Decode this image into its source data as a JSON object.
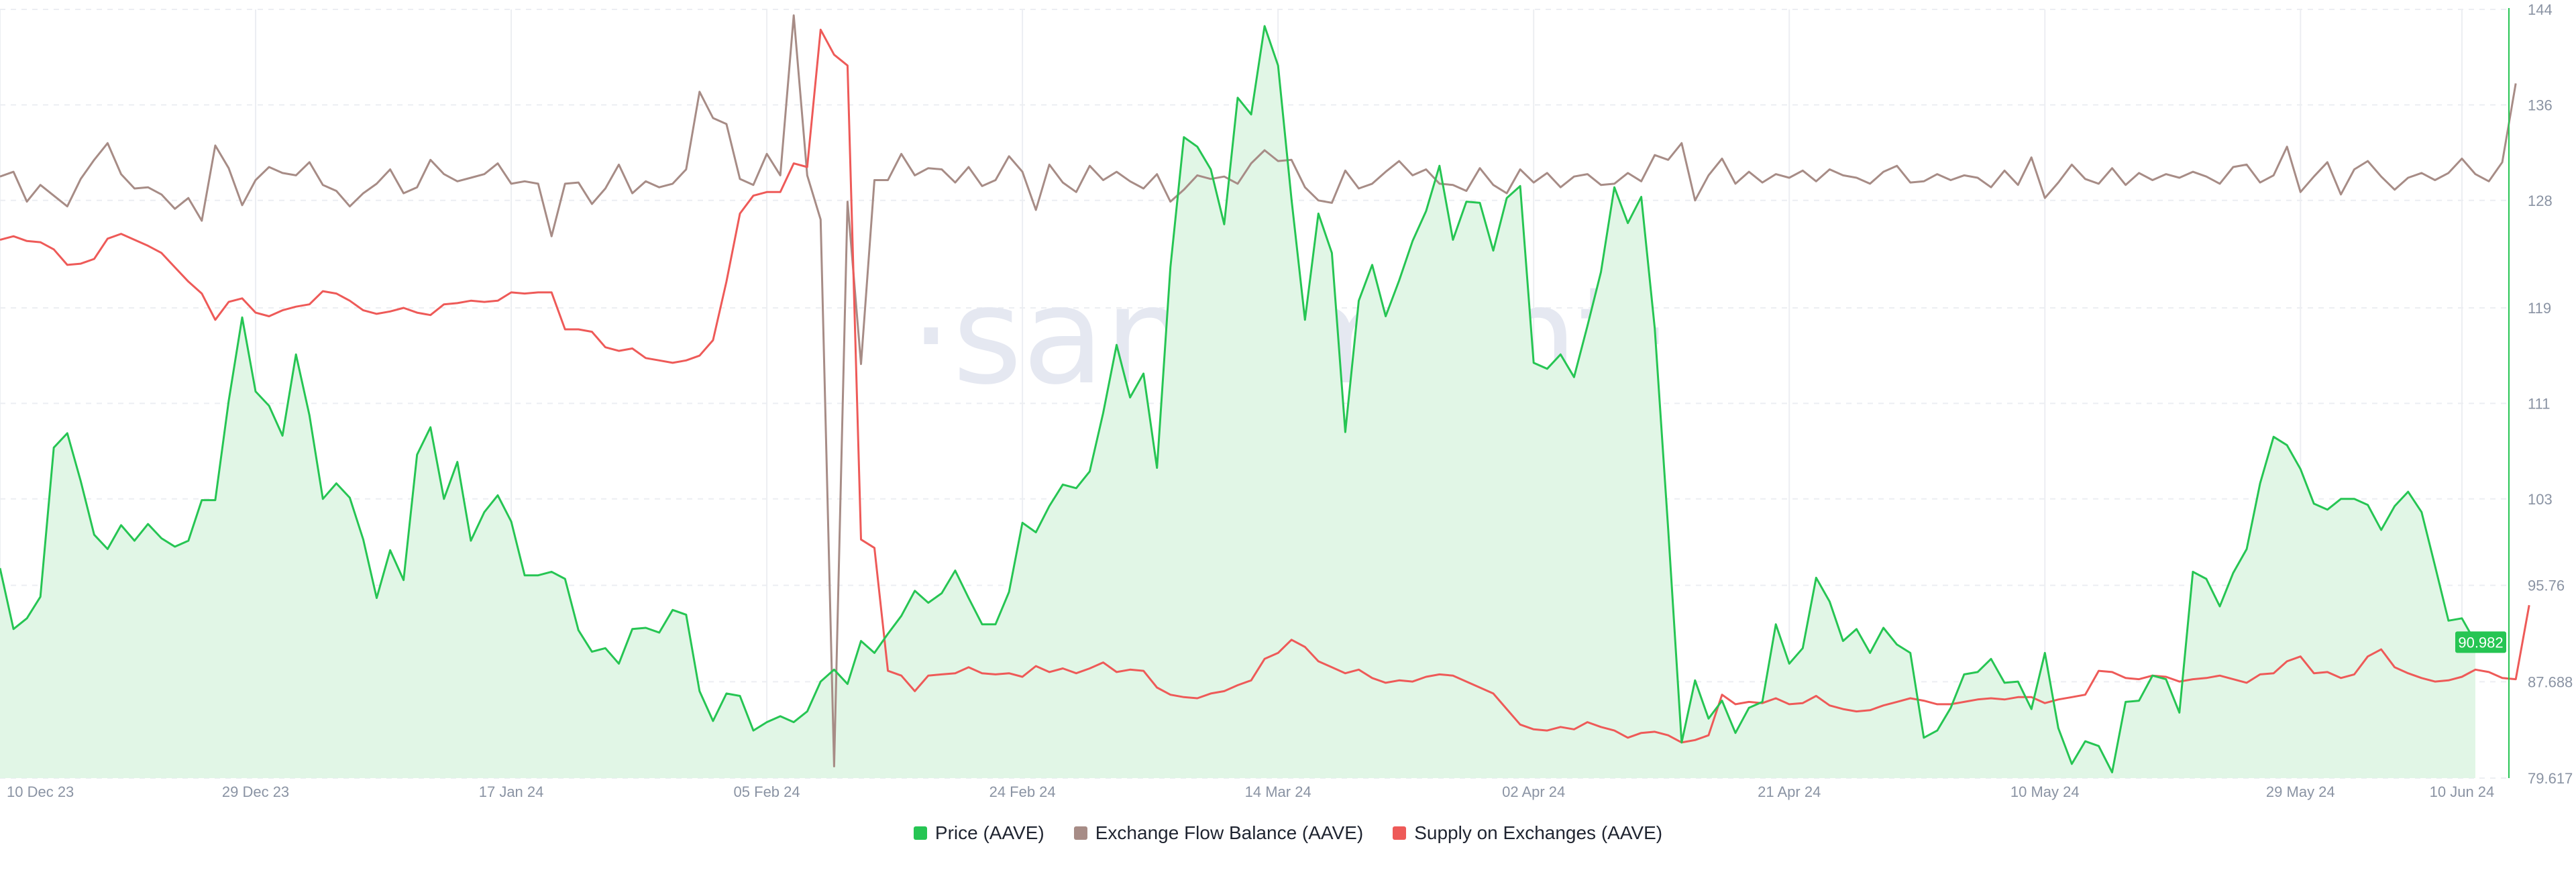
{
  "chart_data": {
    "type": "line",
    "watermark": "·santiment·",
    "x_tick_labels": [
      "10 Dec 23",
      "29 Dec 23",
      "17 Jan 24",
      "05 Feb 24",
      "24 Feb 24",
      "14 Mar 24",
      "02 Apr 24",
      "21 Apr 24",
      "10 May 24",
      "29 May 24",
      "10 Jun 24"
    ],
    "x_tick_index": [
      0,
      19,
      38,
      57,
      76,
      95,
      114,
      133,
      152,
      171,
      183
    ],
    "y_right_ticks": [
      "144",
      "136",
      "128",
      "119",
      "111",
      "103",
      "95.76",
      "87.688",
      "79.617"
    ],
    "y_right_values": [
      144,
      136,
      128,
      119,
      111,
      103,
      95.76,
      87.688,
      79.617
    ],
    "ylim_price": [
      79.617,
      144
    ],
    "current_price_label": "90.982",
    "series": [
      {
        "name": "Price (AAVE)",
        "color": "#26c553",
        "fill": "#e1f6e6",
        "values": [
          97.2,
          92.1,
          93.0,
          94.8,
          107.3,
          108.5,
          104.5,
          100.0,
          98.8,
          100.8,
          99.5,
          100.9,
          99.7,
          99.0,
          99.5,
          102.9,
          102.9,
          111.2,
          118.2,
          112.0,
          110.8,
          108.3,
          115.1,
          110.0,
          103.0,
          104.3,
          103.1,
          99.6,
          94.7,
          98.7,
          96.2,
          106.7,
          109.0,
          103.0,
          106.1,
          99.5,
          101.9,
          103.3,
          101.1,
          96.6,
          96.6,
          96.9,
          96.3,
          92.0,
          90.2,
          90.5,
          89.2,
          92.1,
          92.2,
          91.8,
          93.7,
          93.3,
          86.9,
          84.4,
          86.7,
          86.5,
          83.6,
          84.3,
          84.8,
          84.3,
          85.2,
          87.7,
          88.7,
          87.5,
          91.1,
          90.1,
          91.7,
          93.2,
          95.3,
          94.3,
          95.1,
          97.0,
          94.7,
          92.5,
          92.5,
          95.2,
          101.0,
          100.2,
          102.4,
          104.2,
          103.9,
          105.3,
          110.2,
          115.9,
          111.5,
          113.5,
          105.6,
          122.4,
          133.3,
          132.5,
          130.6,
          126.0,
          136.6,
          135.2,
          142.6,
          139.3,
          128.1,
          118.0,
          126.9,
          123.6,
          108.6,
          119.6,
          122.6,
          118.3,
          121.3,
          124.6,
          127.1,
          130.9,
          124.7,
          127.9,
          127.8,
          123.8,
          128.2,
          129.2,
          114.4,
          113.9,
          115.1,
          113.2,
          117.5,
          122.0,
          129.1,
          126.1,
          128.3,
          117.3,
          100.5,
          82.6,
          87.8,
          84.6,
          86.1,
          83.4,
          85.5,
          86.0,
          92.5,
          89.2,
          90.5,
          96.4,
          94.4,
          91.1,
          92.1,
          90.1,
          92.2,
          90.8,
          90.1,
          83.0,
          83.6,
          85.5,
          88.3,
          88.5,
          89.6,
          87.6,
          87.7,
          85.4,
          90.1,
          83.8,
          80.8,
          82.7,
          82.3,
          80.1,
          86.0,
          86.1,
          88.2,
          87.9,
          85.1,
          96.9,
          96.3,
          94.0,
          96.8,
          98.8,
          104.3,
          108.2,
          107.5,
          105.5,
          102.6,
          102.1,
          103.0,
          103.0,
          102.5,
          100.4,
          102.4,
          103.6,
          101.9,
          97.4,
          92.8,
          93.0,
          91.0
        ]
      },
      {
        "name": "Exchange Flow Balance (AAVE)",
        "color": "#a78c86",
        "values": [
          130.0,
          130.4,
          127.9,
          129.3,
          128.4,
          127.5,
          129.8,
          131.4,
          132.8,
          130.2,
          129.0,
          129.1,
          128.5,
          127.3,
          128.2,
          126.3,
          132.6,
          130.7,
          127.6,
          129.7,
          130.8,
          130.3,
          130.1,
          131.2,
          129.3,
          128.8,
          127.5,
          128.6,
          129.4,
          130.6,
          128.6,
          129.1,
          131.4,
          130.2,
          129.6,
          129.9,
          130.2,
          131.1,
          129.4,
          129.6,
          129.4,
          125.0,
          129.4,
          129.5,
          127.7,
          129.0,
          131.0,
          128.6,
          129.6,
          129.1,
          129.4,
          130.6,
          137.1,
          134.9,
          134.4,
          129.8,
          129.3,
          131.9,
          130.1,
          143.5,
          130.1,
          126.4,
          80.6,
          127.9,
          114.3,
          129.7,
          129.7,
          131.9,
          130.1,
          130.7,
          130.6,
          129.5,
          130.8,
          129.2,
          129.7,
          131.7,
          130.4,
          127.2,
          131.0,
          129.5,
          128.7,
          130.9,
          129.7,
          130.4,
          129.6,
          129.0,
          130.2,
          127.9,
          128.9,
          130.1,
          129.8,
          130.0,
          129.4,
          131.1,
          132.2,
          131.3,
          131.4,
          129.1,
          128.0,
          127.8,
          130.5,
          129.0,
          129.4,
          130.4,
          131.3,
          130.1,
          130.6,
          129.4,
          129.3,
          128.8,
          130.7,
          129.3,
          128.6,
          130.6,
          129.5,
          130.3,
          129.1,
          130.0,
          130.2,
          129.3,
          129.4,
          130.3,
          129.6,
          131.8,
          131.4,
          132.8,
          128.0,
          130.1,
          131.5,
          129.4,
          130.4,
          129.5,
          130.2,
          129.9,
          130.5,
          129.6,
          130.6,
          130.1,
          129.9,
          129.4,
          130.4,
          130.9,
          129.5,
          129.6,
          130.2,
          129.7,
          130.1,
          129.9,
          129.1,
          130.5,
          129.3,
          131.6,
          128.2,
          129.5,
          131.0,
          129.8,
          129.4,
          130.7,
          129.3,
          130.3,
          129.7,
          130.2,
          129.9,
          130.4,
          130.0,
          129.4,
          130.8,
          131.0,
          129.5,
          130.1,
          132.5,
          128.7,
          130.0,
          131.2,
          128.5,
          130.6,
          131.3,
          130.0,
          128.9,
          129.9,
          130.3,
          129.7,
          130.3,
          131.5,
          130.2,
          129.6,
          131.2,
          137.8
        ]
      },
      {
        "name": "Supply on Exchanges (AAVE)",
        "color": "#ee5a58",
        "values": [
          124.7,
          125.0,
          124.6,
          124.5,
          123.9,
          122.6,
          122.7,
          123.1,
          124.8,
          125.2,
          124.7,
          124.2,
          123.6,
          122.4,
          121.2,
          120.2,
          118.0,
          119.5,
          119.8,
          118.6,
          118.3,
          118.8,
          119.1,
          119.3,
          120.4,
          120.2,
          119.6,
          118.8,
          118.5,
          118.7,
          119.0,
          118.6,
          118.4,
          119.3,
          119.4,
          119.6,
          119.5,
          119.6,
          120.3,
          120.2,
          120.3,
          120.3,
          117.2,
          117.2,
          117.0,
          115.7,
          115.4,
          115.6,
          114.8,
          114.6,
          114.4,
          114.6,
          115.0,
          116.3,
          121.2,
          126.9,
          128.4,
          128.7,
          128.7,
          131.1,
          130.8,
          142.3,
          140.2,
          139.3,
          99.6,
          98.9,
          88.6,
          88.2,
          86.9,
          88.2,
          88.3,
          88.4,
          88.9,
          88.4,
          88.3,
          88.4,
          88.1,
          89.0,
          88.5,
          88.8,
          88.4,
          88.8,
          89.3,
          88.5,
          88.7,
          88.6,
          87.2,
          86.6,
          86.4,
          86.3,
          86.7,
          86.9,
          87.4,
          87.8,
          89.6,
          90.1,
          91.2,
          90.6,
          89.4,
          88.9,
          88.4,
          88.7,
          88.0,
          87.6,
          87.8,
          87.7,
          88.1,
          88.3,
          88.2,
          87.7,
          87.2,
          86.7,
          85.4,
          84.1,
          83.7,
          83.6,
          83.9,
          83.7,
          84.3,
          83.9,
          83.6,
          83.0,
          83.4,
          83.5,
          83.2,
          82.6,
          82.8,
          83.2,
          86.6,
          85.8,
          86.0,
          85.9,
          86.3,
          85.8,
          85.9,
          86.5,
          85.7,
          85.4,
          85.2,
          85.3,
          85.7,
          86.0,
          86.3,
          86.1,
          85.8,
          85.8,
          86.0,
          86.2,
          86.3,
          86.2,
          86.4,
          86.4,
          85.9,
          86.2,
          86.4,
          86.6,
          88.6,
          88.5,
          88.0,
          87.9,
          88.2,
          88.1,
          87.7,
          87.9,
          88.0,
          88.2,
          87.9,
          87.6,
          88.3,
          88.4,
          89.4,
          89.8,
          88.4,
          88.5,
          88.0,
          88.3,
          89.8,
          90.4,
          88.9,
          88.4,
          88.0,
          87.7,
          87.8,
          88.1,
          88.7,
          88.5,
          88.0,
          87.9,
          94.1
        ]
      }
    ]
  }
}
